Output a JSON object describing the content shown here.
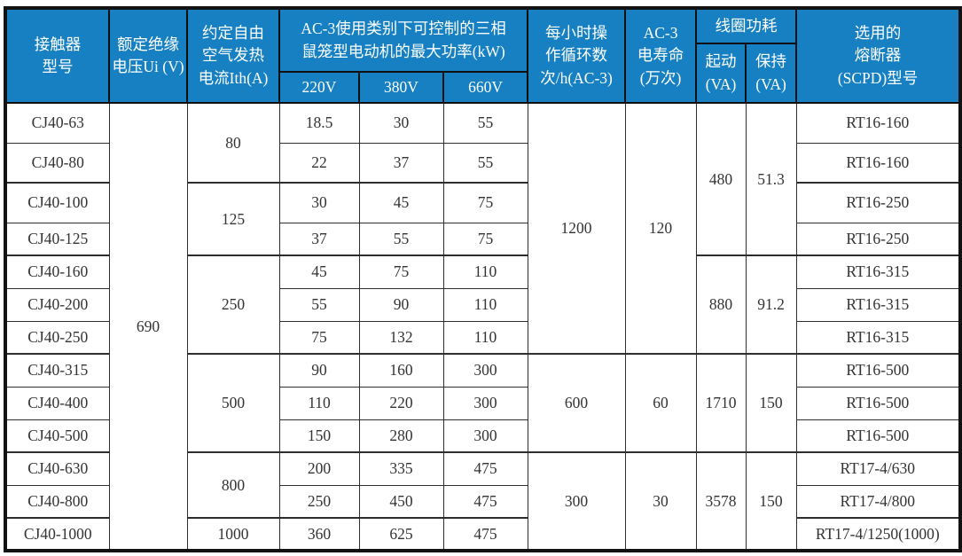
{
  "colors": {
    "header_bg": "#1680c2",
    "header_text": "#ffffff",
    "grid_line": "#2e2e2e",
    "outer_border": "#121212",
    "body_text": "#333333"
  },
  "table": {
    "headers": {
      "model": "接触器\n型号",
      "rated_voltage": "额定绝缘\n电压Ui (V)",
      "thermal_current": "约定自由\n空气发热\n电流Ith(A)",
      "max_power": "AC-3使用类别下可控制的三相\n鼠笼型电动机的最大功率(kW)",
      "power_voltages": [
        "220V",
        "380V",
        "660V"
      ],
      "cycles": "每小时操\n作循环数\n次/h(AC-3)",
      "electrical_life": "AC-3\n电寿命\n(万次)",
      "coil_power": "线圈功耗",
      "coil_start": "起动\n(VA)",
      "coil_hold": "保持\n(VA)",
      "fuse": "选用的\n熔断器\n(SCPD)型号"
    },
    "rated_voltage_value": "690",
    "rows": [
      {
        "model": "CJ40-63",
        "p220": "18.5",
        "p380": "30",
        "p660": "55",
        "fuse": "RT16-160"
      },
      {
        "model": "CJ40-80",
        "p220": "22",
        "p380": "37",
        "p660": "55",
        "fuse": "RT16-160"
      },
      {
        "model": "CJ40-100",
        "p220": "30",
        "p380": "45",
        "p660": "75",
        "fuse": "RT16-250"
      },
      {
        "model": "CJ40-125",
        "p220": "37",
        "p380": "55",
        "p660": "75",
        "fuse": "RT16-250"
      },
      {
        "model": "CJ40-160",
        "p220": "45",
        "p380": "75",
        "p660": "110",
        "fuse": "RT16-315"
      },
      {
        "model": "CJ40-200",
        "p220": "55",
        "p380": "90",
        "p660": "110",
        "fuse": "RT16-315"
      },
      {
        "model": "CJ40-250",
        "p220": "75",
        "p380": "132",
        "p660": "110",
        "fuse": "RT16-315"
      },
      {
        "model": "CJ40-315",
        "p220": "90",
        "p380": "160",
        "p660": "300",
        "fuse": "RT16-500"
      },
      {
        "model": "CJ40-400",
        "p220": "110",
        "p380": "220",
        "p660": "300",
        "fuse": "RT16-500"
      },
      {
        "model": "CJ40-500",
        "p220": "150",
        "p380": "280",
        "p660": "300",
        "fuse": "RT16-500"
      },
      {
        "model": "CJ40-630",
        "p220": "200",
        "p380": "335",
        "p660": "475",
        "fuse": "RT17-4/630"
      },
      {
        "model": "CJ40-800",
        "p220": "250",
        "p380": "450",
        "p660": "475",
        "fuse": "RT17-4/800"
      },
      {
        "model": "CJ40-1000",
        "p220": "360",
        "p380": "625",
        "p660": "475",
        "fuse": "RT17-4/1250(1000)"
      }
    ],
    "merged_columns": {
      "thermal_current": [
        {
          "value": "80",
          "span": 2
        },
        {
          "value": "125",
          "span": 2
        },
        {
          "value": "250",
          "span": 3
        },
        {
          "value": "500",
          "span": 3
        },
        {
          "value": "800",
          "span": 2
        },
        {
          "value": "1000",
          "span": 1
        }
      ],
      "cycles": [
        {
          "value": "1200",
          "span": 7
        },
        {
          "value": "600",
          "span": 3
        },
        {
          "value": "300",
          "span": 3
        }
      ],
      "electrical_life": [
        {
          "value": "120",
          "span": 7
        },
        {
          "value": "60",
          "span": 3
        },
        {
          "value": "30",
          "span": 3
        }
      ],
      "coil_start": [
        {
          "value": "480",
          "span": 4
        },
        {
          "value": "880",
          "span": 3
        },
        {
          "value": "1710",
          "span": 3
        },
        {
          "value": "3578",
          "span": 3
        }
      ],
      "coil_hold": [
        {
          "value": "51.3",
          "span": 4
        },
        {
          "value": "91.2",
          "span": 3
        },
        {
          "value": "150",
          "span": 3
        },
        {
          "value": "150",
          "span": 3
        }
      ]
    }
  }
}
